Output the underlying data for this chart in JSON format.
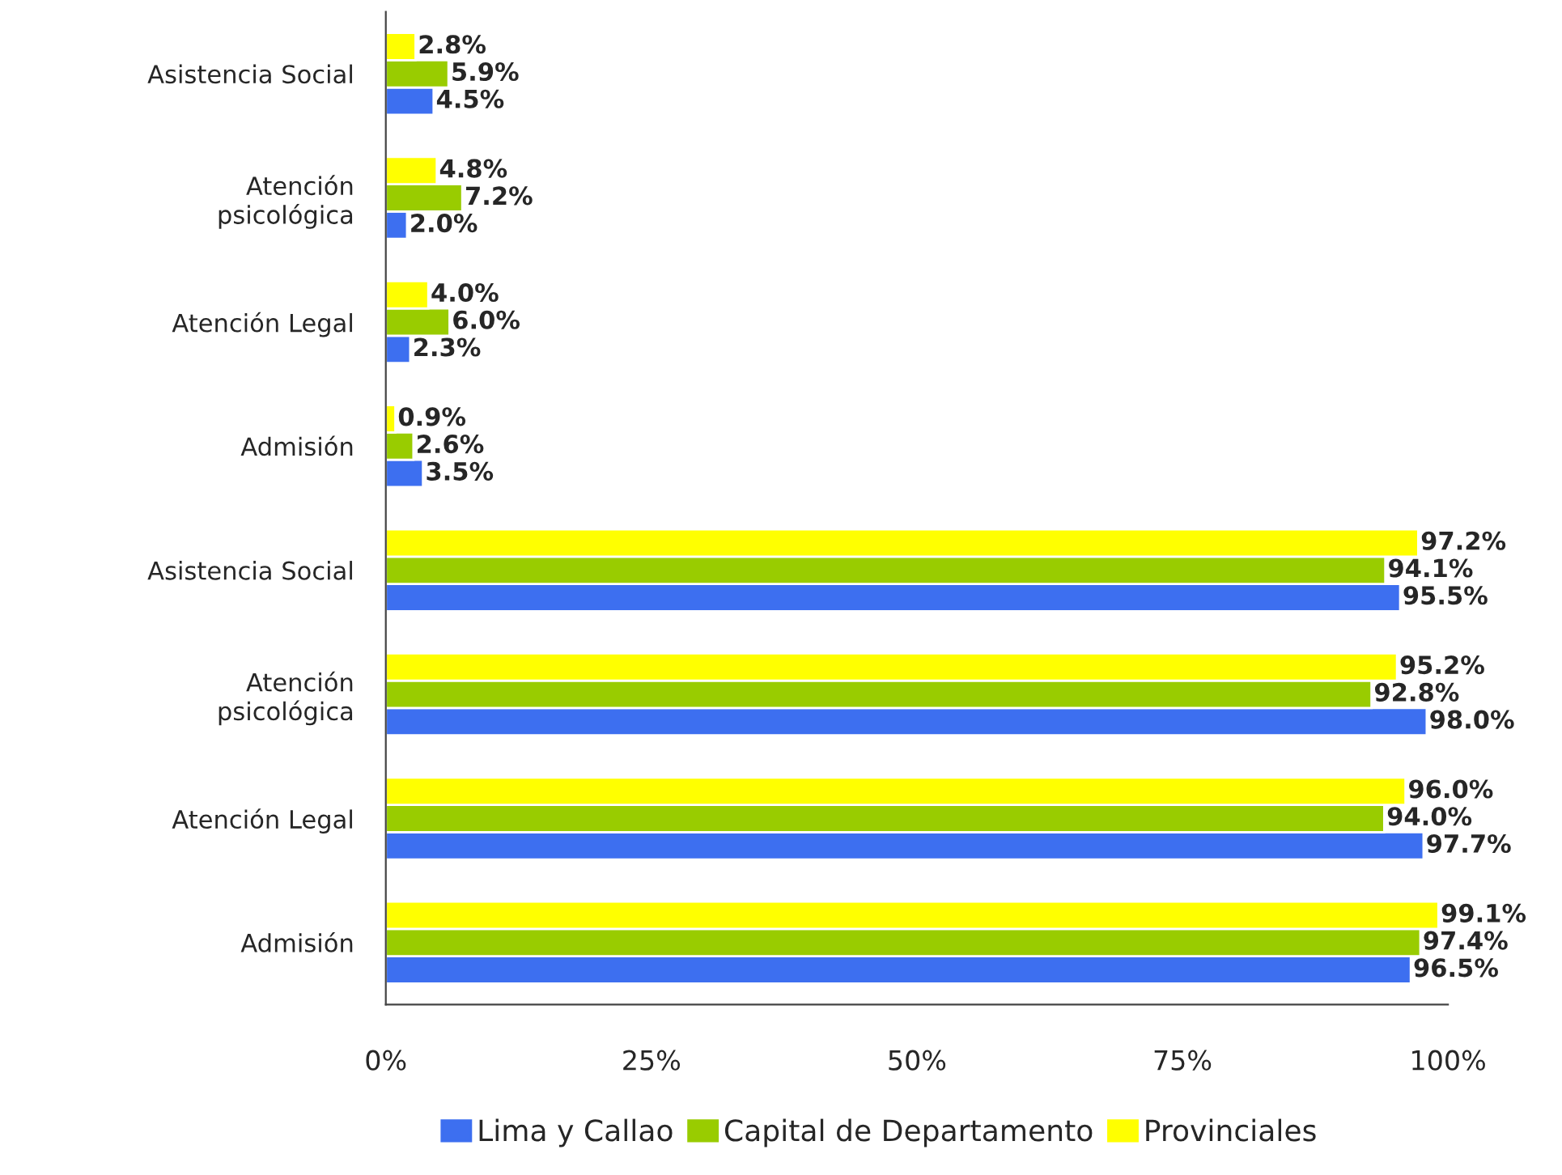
{
  "chart_data": {
    "type": "bar",
    "orientation": "horizontal",
    "categories": [
      "Asistencia Social",
      "Atención\npsicológica",
      "Atención Legal",
      "Admisión",
      "Asistencia Social",
      "Atención\npsicológica",
      "Atención Legal",
      "Admisión"
    ],
    "series": [
      {
        "name": "Lima y Callao",
        "color": "#3d6ff0",
        "values": [
          4.5,
          2.0,
          2.3,
          3.5,
          95.5,
          98.0,
          97.7,
          96.5
        ],
        "value_labels": [
          "4.5%",
          "2.0%",
          "2.3%",
          "3.5%",
          "95.5%",
          "98.0%",
          "97.7%",
          "96.5%"
        ]
      },
      {
        "name": "Capital de Departamento",
        "color": "#99cc00",
        "values": [
          5.9,
          7.2,
          6.0,
          2.6,
          94.1,
          92.8,
          94.0,
          97.4
        ],
        "value_labels": [
          "5.9%",
          "7.2%",
          "6.0%",
          "2.6%",
          "94.1%",
          "92.8%",
          "94.0%",
          "97.4%"
        ]
      },
      {
        "name": "Provinciales",
        "color": "#ffff00",
        "values": [
          2.8,
          4.8,
          4.0,
          0.9,
          97.2,
          95.2,
          96.0,
          99.1
        ],
        "value_labels": [
          "2.8%",
          "4.8%",
          "4.0%",
          "0.9%",
          "97.2%",
          "95.2%",
          "96.0%",
          "99.1%"
        ]
      }
    ],
    "xlim": [
      0,
      100
    ],
    "xticks": [
      {
        "value": 0,
        "label": "0%"
      },
      {
        "value": 25,
        "label": "25%"
      },
      {
        "value": 50,
        "label": "50%"
      },
      {
        "value": 75,
        "label": "75%"
      },
      {
        "value": 100,
        "label": "100%"
      }
    ],
    "grid": false,
    "legend": "bottom"
  }
}
